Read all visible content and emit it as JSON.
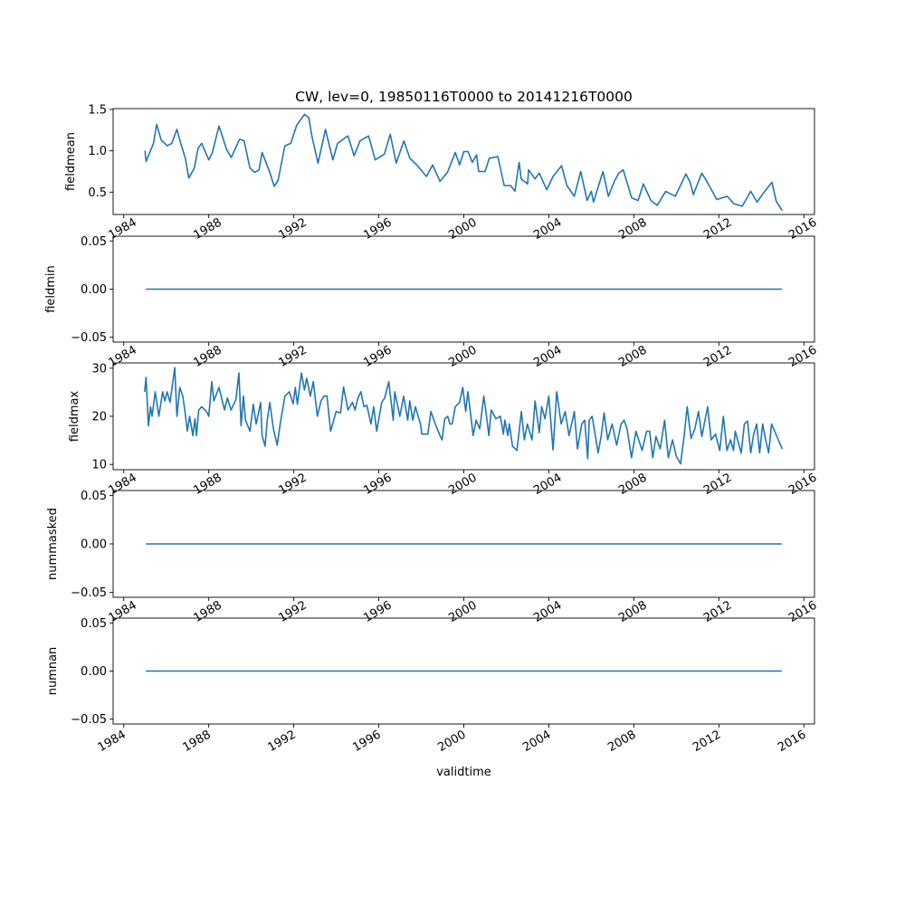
{
  "chart_data": {
    "type": "line",
    "title": "CW, lev=0, 19850116T0000 to 20141216T0000",
    "xlabel": "validtime",
    "x_units": "decimal year",
    "xlim": [
      1983.5,
      2016.5
    ],
    "x_ticks": [
      "1984",
      "1988",
      "1992",
      "1996",
      "2000",
      "2004",
      "2008",
      "2012",
      "2016"
    ],
    "line_color": "#1f77b4",
    "grid": false,
    "panels": [
      {
        "ylabel": "fieldmean",
        "ylim": [
          0.23,
          1.51
        ],
        "y_ticks": [
          "0.5",
          "1.0",
          "1.5"
        ],
        "y_tick_values": [
          0.5,
          1.0,
          1.5
        ],
        "x": [
          1985.0,
          1985.05,
          1985.4,
          1985.55,
          1985.76,
          1986.04,
          1986.26,
          1986.5,
          1986.68,
          1986.9,
          1987.06,
          1987.32,
          1987.5,
          1987.67,
          1988.0,
          1988.17,
          1988.48,
          1988.85,
          1989.06,
          1989.45,
          1989.66,
          1989.94,
          1990.16,
          1990.37,
          1990.51,
          1990.87,
          1991.08,
          1991.26,
          1991.58,
          1991.86,
          1992.14,
          1992.5,
          1992.71,
          1992.85,
          1993.14,
          1993.49,
          1993.84,
          1994.06,
          1994.55,
          1994.84,
          1995.12,
          1995.52,
          1995.83,
          1996.26,
          1996.54,
          1996.82,
          1997.18,
          1997.46,
          1997.82,
          1998.24,
          1998.53,
          1998.88,
          1999.23,
          1999.6,
          1999.8,
          2000.0,
          2000.2,
          2000.4,
          2000.6,
          2000.7,
          2001.0,
          2001.2,
          2001.6,
          2001.9,
          2002.2,
          2002.4,
          2002.6,
          2002.7,
          2003.0,
          2003.05,
          2003.35,
          2003.55,
          2003.9,
          2004.2,
          2004.6,
          2004.85,
          2005.2,
          2005.5,
          2005.8,
          2006.0,
          2006.1,
          2006.55,
          2006.8,
          2007.1,
          2007.3,
          2007.5,
          2007.9,
          2008.2,
          2008.45,
          2008.8,
          2009.1,
          2009.5,
          2009.95,
          2010.45,
          2010.65,
          2010.8,
          2011.2,
          2011.5,
          2011.9,
          2012.4,
          2012.7,
          2013.1,
          2013.5,
          2013.8,
          2014.1,
          2014.5,
          2014.7,
          2014.98
        ],
        "y": [
          1.0,
          0.87,
          1.09,
          1.32,
          1.13,
          1.06,
          1.09,
          1.26,
          1.09,
          0.91,
          0.67,
          0.79,
          1.03,
          1.09,
          0.89,
          0.98,
          1.3,
          1.01,
          0.92,
          1.14,
          1.12,
          0.79,
          0.74,
          0.77,
          0.98,
          0.74,
          0.57,
          0.64,
          1.06,
          1.09,
          1.31,
          1.44,
          1.4,
          1.18,
          0.85,
          1.26,
          0.89,
          1.09,
          1.18,
          0.94,
          1.12,
          1.18,
          0.89,
          0.96,
          1.2,
          0.85,
          1.12,
          0.91,
          0.82,
          0.69,
          0.83,
          0.63,
          0.74,
          0.98,
          0.83,
          0.99,
          0.99,
          0.86,
          0.95,
          0.75,
          0.75,
          0.91,
          0.93,
          0.58,
          0.58,
          0.51,
          0.86,
          0.66,
          0.6,
          0.77,
          0.66,
          0.73,
          0.53,
          0.69,
          0.82,
          0.58,
          0.45,
          0.75,
          0.4,
          0.51,
          0.38,
          0.75,
          0.45,
          0.64,
          0.73,
          0.77,
          0.43,
          0.4,
          0.6,
          0.4,
          0.34,
          0.51,
          0.45,
          0.72,
          0.62,
          0.47,
          0.73,
          0.6,
          0.41,
          0.45,
          0.36,
          0.33,
          0.51,
          0.38,
          0.49,
          0.62,
          0.39,
          0.28
        ]
      },
      {
        "ylabel": "fieldmin",
        "ylim": [
          -0.055,
          0.055
        ],
        "y_ticks": [
          "−0.05",
          "0.00",
          "0.05"
        ],
        "y_tick_values": [
          -0.05,
          0.0,
          0.05
        ],
        "x": [
          1985.04,
          2014.96
        ],
        "y": [
          0,
          0
        ]
      },
      {
        "ylabel": "fieldmax",
        "ylim": [
          8.9,
          31.1
        ],
        "y_ticks": [
          "10",
          "20",
          "30"
        ],
        "y_tick_values": [
          10,
          20,
          30
        ],
        "x": [
          1984.98,
          1985.05,
          1985.16,
          1985.26,
          1985.33,
          1985.48,
          1985.65,
          1985.83,
          1985.93,
          1986.04,
          1986.18,
          1986.4,
          1986.5,
          1986.64,
          1986.78,
          1986.89,
          1986.99,
          1987.1,
          1987.25,
          1987.35,
          1987.42,
          1987.53,
          1987.67,
          1987.89,
          1988.0,
          1988.14,
          1988.24,
          1988.48,
          1988.74,
          1988.88,
          1989.05,
          1989.28,
          1989.42,
          1989.52,
          1989.63,
          1989.73,
          1989.94,
          1990.09,
          1990.23,
          1990.44,
          1990.51,
          1990.65,
          1990.75,
          1990.87,
          1991.04,
          1991.22,
          1991.36,
          1991.58,
          1991.79,
          1991.97,
          1992.07,
          1992.17,
          1992.36,
          1992.5,
          1992.61,
          1992.78,
          1992.92,
          1993.11,
          1993.28,
          1993.42,
          1993.56,
          1993.73,
          1993.99,
          1994.2,
          1994.34,
          1994.55,
          1994.76,
          1994.88,
          1995.02,
          1995.16,
          1995.3,
          1995.44,
          1995.63,
          1995.76,
          1995.9,
          1996.14,
          1996.28,
          1996.47,
          1996.68,
          1996.75,
          1996.99,
          1997.17,
          1997.36,
          1997.46,
          1997.6,
          1997.72,
          1997.96,
          1998.03,
          1998.31,
          1998.45,
          1998.66,
          1998.88,
          1998.98,
          1999.1,
          1999.24,
          1999.35,
          1999.45,
          1999.6,
          1999.8,
          1999.95,
          2000.09,
          2000.19,
          2000.3,
          2000.44,
          2000.58,
          2000.75,
          2000.94,
          2001.04,
          2001.18,
          2001.29,
          2001.51,
          2001.72,
          2001.86,
          2001.93,
          2002.07,
          2002.14,
          2002.29,
          2002.5,
          2002.71,
          2002.85,
          2002.99,
          2003.21,
          2003.35,
          2003.55,
          2003.66,
          2003.82,
          2004.0,
          2004.2,
          2004.37,
          2004.58,
          2004.77,
          2004.95,
          2005.2,
          2005.35,
          2005.55,
          2005.69,
          2005.83,
          2005.9,
          2006.04,
          2006.32,
          2006.46,
          2006.6,
          2006.77,
          2006.98,
          2007.19,
          2007.4,
          2007.54,
          2007.68,
          2007.89,
          2008.1,
          2008.39,
          2008.6,
          2008.74,
          2008.89,
          2009.04,
          2009.24,
          2009.45,
          2009.62,
          2009.82,
          2010.0,
          2010.2,
          2010.37,
          2010.51,
          2010.69,
          2010.87,
          2011.04,
          2011.2,
          2011.47,
          2011.64,
          2011.84,
          2012.04,
          2012.21,
          2012.38,
          2012.55,
          2012.69,
          2012.77,
          2013.05,
          2013.2,
          2013.35,
          2013.5,
          2013.64,
          2013.78,
          2013.92,
          2014.06,
          2014.2,
          2014.34,
          2014.48,
          2014.98
        ],
        "y": [
          25.1,
          28.1,
          18,
          22,
          20,
          25.1,
          20,
          25.1,
          23.2,
          25.1,
          22.9,
          30.1,
          20,
          26,
          24.2,
          20.7,
          16.9,
          20,
          16,
          19.5,
          16,
          21.3,
          22,
          21,
          20,
          27.2,
          23.2,
          26,
          21.3,
          23.8,
          21.3,
          23.5,
          29,
          18,
          24.2,
          19.2,
          16.9,
          22.5,
          18.4,
          22.9,
          16,
          13.8,
          19.2,
          22.9,
          17.4,
          14,
          18.4,
          24.2,
          25.1,
          22.6,
          26,
          22.5,
          29,
          25.5,
          27.9,
          24.2,
          27.2,
          20,
          23.2,
          24.2,
          24.2,
          16.9,
          21,
          20.7,
          26.1,
          21.3,
          22.9,
          21.3,
          23.8,
          25.1,
          22,
          22.3,
          18.4,
          22,
          16.9,
          22.9,
          23.8,
          27.2,
          19.2,
          25.1,
          20,
          24.2,
          19.2,
          23.2,
          19.2,
          22,
          18.4,
          16.3,
          16.3,
          21,
          18.4,
          16,
          15.1,
          19.5,
          20,
          18.4,
          18.4,
          22,
          22.9,
          26,
          21,
          25.1,
          21.3,
          16,
          19.2,
          17.4,
          24.2,
          21,
          16,
          21.3,
          19.5,
          20,
          16.3,
          19.2,
          16,
          18.4,
          13.8,
          12.9,
          21,
          15.1,
          18.4,
          15.1,
          23.2,
          16.6,
          22,
          19.5,
          24.2,
          13,
          25.1,
          18.4,
          21,
          16,
          21,
          13.2,
          18.4,
          19.2,
          11.2,
          19.2,
          20,
          12.4,
          15.8,
          20.7,
          15.1,
          18.4,
          14,
          18.4,
          19.2,
          17.4,
          11.4,
          16.9,
          12.9,
          16.9,
          16.9,
          11.4,
          15.8,
          13.2,
          19.2,
          11.4,
          15.1,
          11.7,
          10.1,
          16,
          22,
          15.4,
          17.4,
          21,
          15.8,
          22,
          15.1,
          16.3,
          12.9,
          20,
          12.9,
          15.1,
          12.9,
          16.9,
          12.4,
          18.4,
          19,
          12.4,
          16.3,
          18.4,
          12.4,
          18.4,
          15.1,
          12.4,
          18.4,
          13.2
        ]
      },
      {
        "ylabel": "nummasked",
        "ylim": [
          -0.055,
          0.055
        ],
        "y_ticks": [
          "−0.05",
          "0.00",
          "0.05"
        ],
        "y_tick_values": [
          -0.05,
          0.0,
          0.05
        ],
        "x": [
          1985.04,
          2014.96
        ],
        "y": [
          0,
          0
        ]
      },
      {
        "ylabel": "numnan",
        "ylim": [
          -0.055,
          0.055
        ],
        "y_ticks": [
          "−0.05",
          "0.00",
          "0.05"
        ],
        "y_tick_values": [
          -0.05,
          0.0,
          0.05
        ],
        "x": [
          1985.04,
          2014.96
        ],
        "y": [
          0,
          0
        ]
      }
    ]
  }
}
